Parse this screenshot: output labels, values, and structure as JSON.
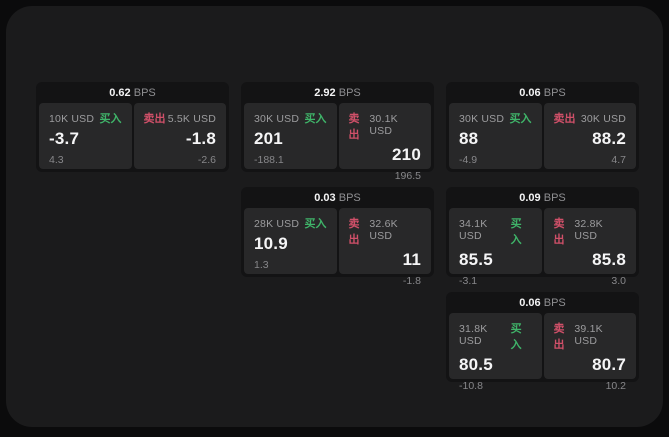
{
  "colors": {
    "buy_accent": "#3fb469",
    "sell_accent": "#d05069",
    "panel_bg": "#1b1b1c",
    "card_bg": "#131314",
    "cell_bg": "#282829",
    "value_text": "#f5f5f6",
    "label_text": "#9c9c9e"
  },
  "cards": [
    {
      "grid": {
        "col": 1,
        "row": 1
      },
      "bps_value": "0.62",
      "bps_unit": "BPS",
      "buy": {
        "amount": "10K USD",
        "side_label": "买入",
        "price": "-3.7",
        "change": "4.3"
      },
      "sell": {
        "side_label": "卖出",
        "amount": "5.5K USD",
        "price": "-1.8",
        "change": "-2.6"
      }
    },
    {
      "grid": {
        "col": 2,
        "row": 1
      },
      "bps_value": "2.92",
      "bps_unit": "BPS",
      "buy": {
        "amount": "30K USD",
        "side_label": "买入",
        "price": "201",
        "change": "-188.1"
      },
      "sell": {
        "side_label": "卖出",
        "amount": "30.1K USD",
        "price": "210",
        "change": "196.5"
      }
    },
    {
      "grid": {
        "col": 3,
        "row": 1
      },
      "bps_value": "0.06",
      "bps_unit": "BPS",
      "buy": {
        "amount": "30K USD",
        "side_label": "买入",
        "price": "88",
        "change": "-4.9"
      },
      "sell": {
        "side_label": "卖出",
        "amount": "30K USD",
        "price": "88.2",
        "change": "4.7"
      }
    },
    {
      "grid": {
        "col": 2,
        "row": 2
      },
      "bps_value": "0.03",
      "bps_unit": "BPS",
      "buy": {
        "amount": "28K USD",
        "side_label": "买入",
        "price": "10.9",
        "change": "1.3"
      },
      "sell": {
        "side_label": "卖出",
        "amount": "32.6K USD",
        "price": "11",
        "change": "-1.8"
      }
    },
    {
      "grid": {
        "col": 3,
        "row": 2
      },
      "bps_value": "0.09",
      "bps_unit": "BPS",
      "buy": {
        "amount": "34.1K USD",
        "side_label": "买入",
        "price": "85.5",
        "change": "-3.1"
      },
      "sell": {
        "side_label": "卖出",
        "amount": "32.8K USD",
        "price": "85.8",
        "change": "3.0"
      }
    },
    {
      "grid": {
        "col": 3,
        "row": 3
      },
      "bps_value": "0.06",
      "bps_unit": "BPS",
      "buy": {
        "amount": "31.8K USD",
        "side_label": "买入",
        "price": "80.5",
        "change": "-10.8"
      },
      "sell": {
        "side_label": "卖出",
        "amount": "39.1K USD",
        "price": "80.7",
        "change": "10.2"
      }
    }
  ]
}
